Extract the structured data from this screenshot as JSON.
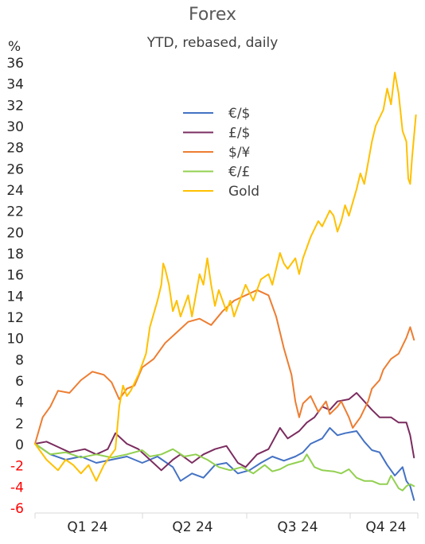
{
  "chart_data": {
    "type": "line",
    "title": "Forex",
    "subtitle": "YTD, rebased, daily",
    "ylabel": "%",
    "xlabel": "",
    "ylim": [
      -6,
      36
    ],
    "yticks": [
      "36",
      "34",
      "32",
      "30",
      "28",
      "26",
      "24",
      "22",
      "20",
      "18",
      "16",
      "14",
      "12",
      "10",
      "8",
      "6",
      "4",
      "2",
      "0",
      "-2",
      "-4",
      "-6"
    ],
    "negative_tick_color": "#ff0000",
    "categories": [
      "Q1 24",
      "Q2 24",
      "Q3 24",
      "Q4 24"
    ],
    "x_domain": [
      0,
      100
    ],
    "legend_position": "upper-center",
    "grid": false,
    "series": [
      {
        "name": "€/$",
        "color": "#4472c4",
        "points": [
          [
            0,
            0
          ],
          [
            4,
            -1
          ],
          [
            8,
            -1.5
          ],
          [
            12,
            -1.2
          ],
          [
            16,
            -1.8
          ],
          [
            20,
            -1.5
          ],
          [
            24,
            -1.2
          ],
          [
            28,
            -1.8
          ],
          [
            32,
            -1.2
          ],
          [
            36,
            -2.2
          ],
          [
            38,
            -3.5
          ],
          [
            41,
            -2.8
          ],
          [
            44,
            -3.2
          ],
          [
            47,
            -2.0
          ],
          [
            50,
            -1.8
          ],
          [
            53,
            -2.8
          ],
          [
            56,
            -2.5
          ],
          [
            59,
            -1.8
          ],
          [
            62,
            -1.2
          ],
          [
            65,
            -1.6
          ],
          [
            68,
            -1.2
          ],
          [
            70,
            -0.8
          ],
          [
            72,
            0
          ],
          [
            75,
            0.5
          ],
          [
            77,
            1.5
          ],
          [
            79,
            0.8
          ],
          [
            81,
            1.0
          ],
          [
            84,
            1.2
          ],
          [
            86,
            0.2
          ],
          [
            88,
            -0.6
          ],
          [
            90,
            -0.8
          ],
          [
            92,
            -2.0
          ],
          [
            94,
            -3.0
          ],
          [
            96,
            -2.2
          ],
          [
            97,
            -3.5
          ],
          [
            98,
            -4.0
          ],
          [
            99,
            -5.3
          ]
        ]
      },
      {
        "name": "£/$",
        "color": "#7b2c5f",
        "points": [
          [
            0,
            0
          ],
          [
            3,
            0.2
          ],
          [
            6,
            -0.3
          ],
          [
            9,
            -0.8
          ],
          [
            13,
            -0.5
          ],
          [
            16,
            -1.0
          ],
          [
            19,
            -0.5
          ],
          [
            21,
            1.0
          ],
          [
            24,
            0
          ],
          [
            27,
            -0.5
          ],
          [
            30,
            -1.5
          ],
          [
            33,
            -2.5
          ],
          [
            36,
            -1.5
          ],
          [
            38,
            -1.0
          ],
          [
            41,
            -1.8
          ],
          [
            44,
            -1.0
          ],
          [
            47,
            -0.5
          ],
          [
            50,
            -0.2
          ],
          [
            53,
            -1.8
          ],
          [
            55,
            -2.2
          ],
          [
            58,
            -1.0
          ],
          [
            61,
            -0.5
          ],
          [
            64,
            1.5
          ],
          [
            66,
            0.5
          ],
          [
            69,
            1.2
          ],
          [
            71,
            2.0
          ],
          [
            73,
            2.5
          ],
          [
            75,
            3.5
          ],
          [
            77,
            3.2
          ],
          [
            79,
            4.0
          ],
          [
            82,
            4.2
          ],
          [
            84,
            4.8
          ],
          [
            86,
            4.0
          ],
          [
            88,
            3.2
          ],
          [
            90,
            2.5
          ],
          [
            93,
            2.5
          ],
          [
            95,
            2.0
          ],
          [
            97,
            2.0
          ],
          [
            98,
            0.8
          ],
          [
            99,
            -1.3
          ]
        ]
      },
      {
        "name": "$/¥",
        "color": "#ed7d31",
        "points": [
          [
            0,
            0
          ],
          [
            2,
            2.5
          ],
          [
            4,
            3.5
          ],
          [
            6,
            5.0
          ],
          [
            9,
            4.8
          ],
          [
            12,
            6.0
          ],
          [
            15,
            6.8
          ],
          [
            18,
            6.5
          ],
          [
            20,
            5.8
          ],
          [
            22,
            4.2
          ],
          [
            24,
            5.2
          ],
          [
            26,
            5.5
          ],
          [
            28,
            7.2
          ],
          [
            31,
            8.0
          ],
          [
            34,
            9.5
          ],
          [
            37,
            10.5
          ],
          [
            40,
            11.5
          ],
          [
            43,
            11.8
          ],
          [
            46,
            11.2
          ],
          [
            49,
            12.5
          ],
          [
            52,
            13.5
          ],
          [
            55,
            14.0
          ],
          [
            58,
            14.5
          ],
          [
            61,
            14.0
          ],
          [
            63,
            12.0
          ],
          [
            65,
            9.0
          ],
          [
            67,
            6.5
          ],
          [
            68,
            4.0
          ],
          [
            69,
            2.5
          ],
          [
            70,
            3.8
          ],
          [
            72,
            4.5
          ],
          [
            74,
            3.0
          ],
          [
            76,
            4.0
          ],
          [
            77,
            2.8
          ],
          [
            79,
            3.5
          ],
          [
            80,
            4.0
          ],
          [
            82,
            2.5
          ],
          [
            83,
            1.5
          ],
          [
            85,
            2.5
          ],
          [
            87,
            4.0
          ],
          [
            88,
            5.2
          ],
          [
            90,
            6.0
          ],
          [
            91,
            7.0
          ],
          [
            93,
            8.0
          ],
          [
            95,
            8.5
          ],
          [
            97,
            10.0
          ],
          [
            98,
            11.0
          ],
          [
            99,
            9.8
          ]
        ]
      },
      {
        "name": "€/£",
        "color": "#92d050",
        "points": [
          [
            0,
            0
          ],
          [
            4,
            -1.0
          ],
          [
            8,
            -0.8
          ],
          [
            12,
            -1.3
          ],
          [
            16,
            -1.0
          ],
          [
            20,
            -1.3
          ],
          [
            24,
            -1.0
          ],
          [
            28,
            -0.6
          ],
          [
            30,
            -1.2
          ],
          [
            33,
            -1.0
          ],
          [
            36,
            -0.5
          ],
          [
            39,
            -1.2
          ],
          [
            42,
            -1.0
          ],
          [
            45,
            -1.5
          ],
          [
            48,
            -2.2
          ],
          [
            51,
            -2.5
          ],
          [
            54,
            -2.2
          ],
          [
            57,
            -2.8
          ],
          [
            60,
            -2.0
          ],
          [
            62,
            -2.6
          ],
          [
            64,
            -2.4
          ],
          [
            66,
            -2.0
          ],
          [
            68,
            -1.8
          ],
          [
            70,
            -1.6
          ],
          [
            71,
            -1.0
          ],
          [
            73,
            -2.2
          ],
          [
            75,
            -2.5
          ],
          [
            78,
            -2.6
          ],
          [
            80,
            -2.8
          ],
          [
            82,
            -2.4
          ],
          [
            84,
            -3.2
          ],
          [
            86,
            -3.5
          ],
          [
            88,
            -3.5
          ],
          [
            90,
            -3.8
          ],
          [
            92,
            -3.8
          ],
          [
            93,
            -3.0
          ],
          [
            95,
            -4.2
          ],
          [
            96,
            -4.4
          ],
          [
            97,
            -4.0
          ],
          [
            98,
            -3.8
          ],
          [
            99,
            -4.0
          ]
        ]
      },
      {
        "name": "Gold",
        "color": "#ffc000",
        "points": [
          [
            0,
            0
          ],
          [
            3,
            -1.5
          ],
          [
            6,
            -2.5
          ],
          [
            8,
            -1.5
          ],
          [
            10,
            -2.0
          ],
          [
            12,
            -2.8
          ],
          [
            14,
            -2.0
          ],
          [
            16,
            -3.5
          ],
          [
            18,
            -2.0
          ],
          [
            19,
            -1.5
          ],
          [
            21,
            -0.5
          ],
          [
            22,
            3.5
          ],
          [
            23,
            5.5
          ],
          [
            24,
            4.5
          ],
          [
            25,
            5.0
          ],
          [
            27,
            6.5
          ],
          [
            29,
            8.5
          ],
          [
            30,
            11.0
          ],
          [
            32,
            13.5
          ],
          [
            33,
            15.0
          ],
          [
            33.5,
            17.0
          ],
          [
            34,
            16.5
          ],
          [
            35,
            15.0
          ],
          [
            36,
            12.5
          ],
          [
            37,
            13.5
          ],
          [
            38,
            12.0
          ],
          [
            40,
            14.0
          ],
          [
            41,
            12.0
          ],
          [
            43,
            16.0
          ],
          [
            44,
            15.0
          ],
          [
            45,
            17.5
          ],
          [
            46,
            15.0
          ],
          [
            47,
            13.0
          ],
          [
            48,
            14.5
          ],
          [
            50,
            12.5
          ],
          [
            51,
            13.5
          ],
          [
            52,
            12.0
          ],
          [
            53,
            13.0
          ],
          [
            55,
            15.0
          ],
          [
            57,
            13.5
          ],
          [
            59,
            15.5
          ],
          [
            61,
            16.0
          ],
          [
            62,
            15.0
          ],
          [
            64,
            18.0
          ],
          [
            65,
            17.0
          ],
          [
            66,
            16.5
          ],
          [
            68,
            17.5
          ],
          [
            69,
            16.0
          ],
          [
            70,
            17.5
          ],
          [
            72,
            19.5
          ],
          [
            74,
            21.0
          ],
          [
            75,
            20.5
          ],
          [
            77,
            22.0
          ],
          [
            78,
            21.5
          ],
          [
            79,
            20.0
          ],
          [
            80,
            21.0
          ],
          [
            81,
            22.5
          ],
          [
            82,
            21.5
          ],
          [
            84,
            24.0
          ],
          [
            85,
            25.5
          ],
          [
            86,
            24.5
          ],
          [
            87,
            26.5
          ],
          [
            88,
            28.5
          ],
          [
            89,
            30.0
          ],
          [
            91,
            31.5
          ],
          [
            92,
            33.5
          ],
          [
            93,
            32.0
          ],
          [
            94,
            35.0
          ],
          [
            95,
            33.0
          ],
          [
            96,
            29.5
          ],
          [
            97,
            28.5
          ],
          [
            97.5,
            25.0
          ],
          [
            98,
            24.5
          ],
          [
            98.5,
            27.0
          ],
          [
            99,
            29.0
          ],
          [
            99.5,
            31.0
          ]
        ]
      }
    ]
  }
}
